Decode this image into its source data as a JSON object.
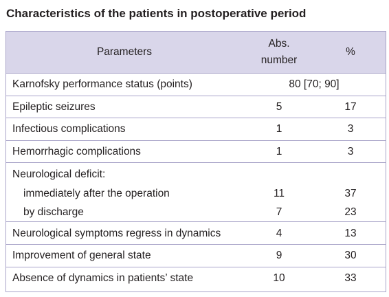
{
  "header": {
    "title": "Characteristics of the patients in postoperative period"
  },
  "table": {
    "columns": [
      {
        "lines": [
          "Parameters"
        ]
      },
      {
        "lines": [
          "Abs.",
          "number"
        ]
      },
      {
        "lines": [
          "%"
        ]
      }
    ],
    "rows": [
      {
        "cells": [
          "Karnofsky performance status (points)",
          "80 [70; 90]"
        ]
      },
      {
        "cells": [
          "Epileptic seizures",
          5,
          17
        ]
      },
      {
        "cells": [
          "Infectious complications",
          1,
          3
        ]
      },
      {
        "cells": [
          "Hemorrhagic complications",
          1,
          3
        ]
      },
      {
        "cells": [
          "Neurological deficit:"
        ],
        "sub": [
          [
            "immediately after the operation",
            11,
            37
          ],
          [
            "by discharge",
            7,
            23
          ]
        ]
      },
      {
        "cells": [
          "Neurological symptoms regress in dynamics",
          4,
          13
        ]
      },
      {
        "cells": [
          "Improvement of general state",
          9,
          30
        ]
      },
      {
        "cells": [
          "Absence of dynamics in patients’ state",
          10,
          33
        ]
      }
    ]
  }
}
